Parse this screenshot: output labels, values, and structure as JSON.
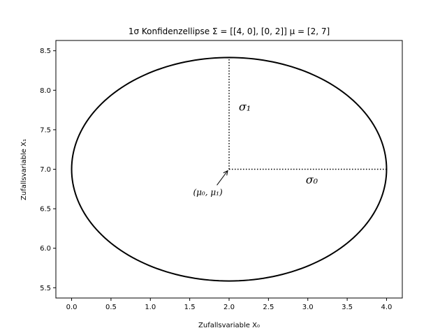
{
  "chart_data": {
    "type": "line",
    "title": "1σ Konfidenzellipse   Σ = [[4, 0], [0, 2]]   μ = [2, 7]",
    "xlabel": "Zufallsvariable X₀",
    "ylabel": "Zufallsvariable X₁",
    "xlim": [
      -0.2,
      4.2
    ],
    "ylim": [
      5.37,
      8.63
    ],
    "x_ticks": [
      0.0,
      0.5,
      1.0,
      1.5,
      2.0,
      2.5,
      3.0,
      3.5,
      4.0
    ],
    "x_tick_labels": [
      "0.0",
      "0.5",
      "1.0",
      "1.5",
      "2.0",
      "2.5",
      "3.0",
      "3.5",
      "4.0"
    ],
    "y_ticks": [
      5.5,
      6.0,
      6.5,
      7.0,
      7.5,
      8.0,
      8.5
    ],
    "y_tick_labels": [
      "5.5",
      "6.0",
      "6.5",
      "7.0",
      "7.5",
      "8.0",
      "8.5"
    ],
    "grid": false,
    "legend": "none",
    "ellipse": {
      "center": [
        2,
        7
      ],
      "semi_axis_x": 2.0,
      "semi_axis_y": 1.4142,
      "color": "#000000"
    },
    "sigma_lines": [
      {
        "from": [
          2,
          7
        ],
        "to": [
          4.0,
          7
        ],
        "label": "σ₀",
        "label_at": [
          3.05,
          6.82
        ]
      },
      {
        "from": [
          2,
          7
        ],
        "to": [
          2,
          8.4142
        ],
        "label": "σ₁",
        "label_at": [
          2.2,
          7.74
        ]
      }
    ],
    "annotation": {
      "text": "(μ₀, μ₁)",
      "point": [
        2,
        7
      ],
      "text_at": [
        1.73,
        6.71
      ]
    }
  }
}
